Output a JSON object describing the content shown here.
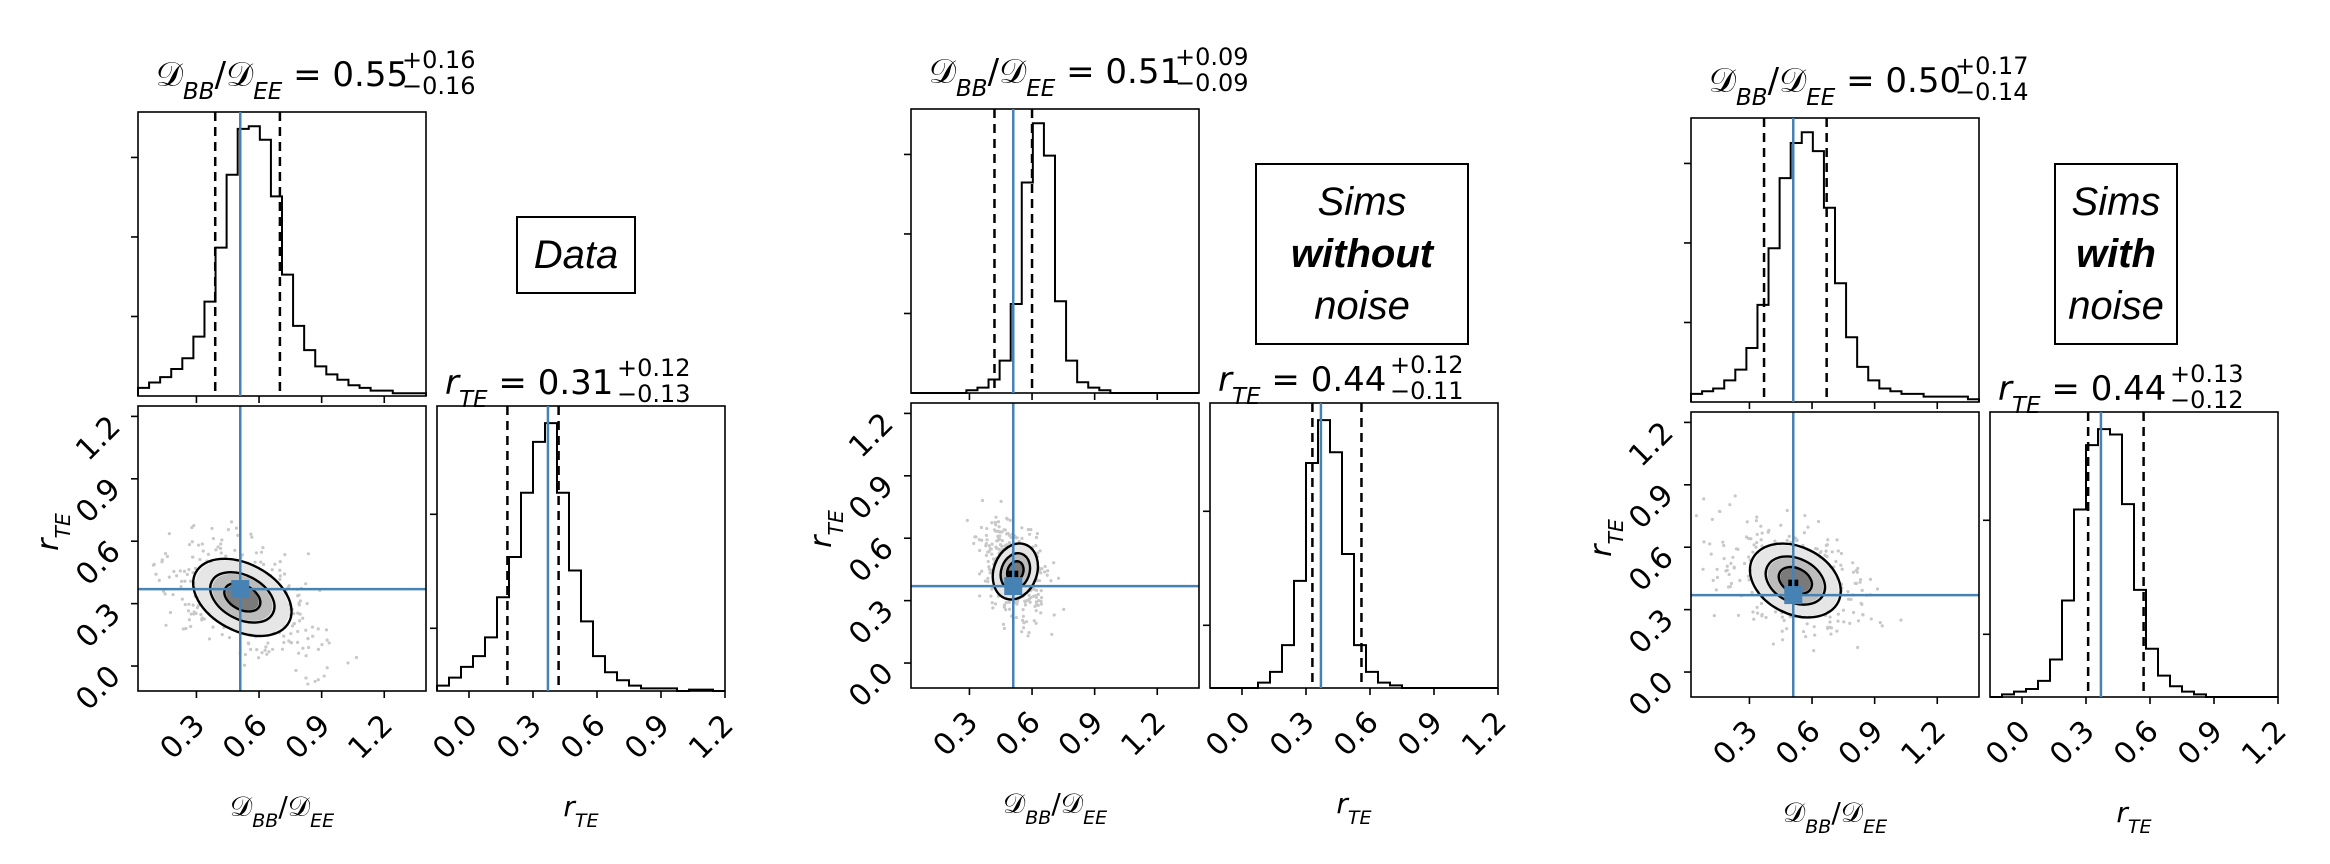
{
  "chart_data": [
    {
      "type": "corner",
      "label_lines": [
        "Data"
      ],
      "label_bold_line": -1,
      "param1": {
        "title_value": "0.55",
        "err_plus": "+0.16",
        "err_minus": "−0.16",
        "truth": 0.51,
        "quantile_lo": 0.39,
        "quantile_hi": 0.7,
        "xlim": [
          0.02,
          1.4
        ],
        "ticks": [
          "0.3",
          "0.6",
          "0.9",
          "1.2"
        ],
        "tick_values": [
          0.3,
          0.6,
          0.9,
          1.2
        ],
        "hist": [
          0.03,
          0.05,
          0.07,
          0.1,
          0.14,
          0.22,
          0.35,
          0.55,
          0.82,
          0.99,
          1.0,
          0.95,
          0.74,
          0.45,
          0.26,
          0.17,
          0.11,
          0.08,
          0.06,
          0.04,
          0.03,
          0.02,
          0.02,
          0.01,
          0.01,
          0.01
        ]
      },
      "param2": {
        "title_value": "0.31",
        "err_plus": "+0.12",
        "err_minus": "−0.13",
        "truth": 0.37,
        "quantile_lo": 0.18,
        "quantile_hi": 0.42,
        "xlim": [
          -0.15,
          1.2
        ],
        "ticks": [
          "0.0",
          "0.3",
          "0.6",
          "0.9",
          "1.2"
        ],
        "tick_values": [
          0.0,
          0.3,
          0.6,
          0.9,
          1.2
        ],
        "hist": [
          0.02,
          0.05,
          0.09,
          0.13,
          0.2,
          0.35,
          0.5,
          0.74,
          0.93,
          1.0,
          0.74,
          0.45,
          0.26,
          0.13,
          0.07,
          0.04,
          0.02,
          0.01,
          0.01,
          0.01,
          0.0,
          0.005,
          0.005,
          0.0
        ]
      },
      "ylim": [
        -0.12,
        1.25
      ],
      "yticks": [
        "0.0",
        "0.3",
        "0.6",
        "0.9",
        "1.2"
      ],
      "ytick_values": [
        0.0,
        0.3,
        0.6,
        0.9,
        1.2
      ],
      "contour_center": [
        0.52,
        0.33
      ],
      "contour_spread": [
        0.22,
        0.14,
        -0.015
      ],
      "peak_point": [
        0.51,
        0.31
      ]
    },
    {
      "type": "corner",
      "label_lines": [
        "Sims",
        "without",
        "noise"
      ],
      "label_bold_line": 1,
      "param1": {
        "title_value": "0.51",
        "err_plus": "+0.09",
        "err_minus": "−0.09",
        "truth": 0.51,
        "quantile_lo": 0.42,
        "quantile_hi": 0.6,
        "xlim": [
          0.02,
          1.4
        ],
        "ticks": [
          "0.3",
          "0.6",
          "0.9",
          "1.2"
        ],
        "tick_values": [
          0.3,
          0.6,
          0.9,
          1.2
        ],
        "hist": [
          0.0,
          0.0,
          0.0,
          0.0,
          0.0,
          0.01,
          0.02,
          0.05,
          0.12,
          0.33,
          0.78,
          1.0,
          0.88,
          0.34,
          0.12,
          0.04,
          0.02,
          0.01,
          0.0,
          0.0,
          0.0,
          0.0,
          0.0,
          0.0,
          0.0,
          0.0
        ]
      },
      "param2": {
        "title_value": "0.44",
        "err_plus": "+0.12",
        "err_minus": "−0.11",
        "truth": 0.37,
        "quantile_lo": 0.33,
        "quantile_hi": 0.56,
        "xlim": [
          -0.15,
          1.2
        ],
        "ticks": [
          "0.0",
          "0.3",
          "0.6",
          "0.9",
          "1.2"
        ],
        "tick_values": [
          0.0,
          0.3,
          0.6,
          0.9,
          1.2
        ],
        "hist": [
          0.0,
          0.0,
          0.0,
          0.0,
          0.02,
          0.06,
          0.16,
          0.4,
          0.84,
          1.0,
          0.88,
          0.5,
          0.16,
          0.06,
          0.02,
          0.01,
          0.0,
          0.0,
          0.0,
          0.0,
          0.0,
          0.0,
          0.0,
          0.0
        ]
      },
      "ylim": [
        -0.12,
        1.25
      ],
      "yticks": [
        "0.0",
        "0.3",
        "0.6",
        "0.9",
        "1.2"
      ],
      "ytick_values": [
        0.0,
        0.3,
        0.6,
        0.9,
        1.2
      ],
      "contour_center": [
        0.52,
        0.44
      ],
      "contour_spread": [
        0.09,
        0.12,
        -0.009
      ],
      "peak_point": [
        0.51,
        0.37
      ]
    },
    {
      "type": "corner",
      "label_lines": [
        "Sims",
        "with",
        "noise"
      ],
      "label_bold_line": 1,
      "param1": {
        "title_value": "0.50",
        "err_plus": "+0.17",
        "err_minus": "−0.14",
        "truth": 0.51,
        "quantile_lo": 0.37,
        "quantile_hi": 0.67,
        "xlim": [
          0.02,
          1.4
        ],
        "ticks": [
          "0.3",
          "0.6",
          "0.9",
          "1.2"
        ],
        "tick_values": [
          0.3,
          0.6,
          0.9,
          1.2
        ],
        "hist": [
          0.03,
          0.04,
          0.05,
          0.08,
          0.12,
          0.2,
          0.36,
          0.57,
          0.83,
          0.96,
          1.0,
          0.93,
          0.72,
          0.44,
          0.24,
          0.13,
          0.08,
          0.05,
          0.04,
          0.03,
          0.03,
          0.02,
          0.02,
          0.02,
          0.02,
          0.01
        ]
      },
      "param2": {
        "title_value": "0.44",
        "err_plus": "+0.13",
        "err_minus": "−0.12",
        "truth": 0.37,
        "quantile_lo": 0.31,
        "quantile_hi": 0.57,
        "xlim": [
          -0.15,
          1.2
        ],
        "ticks": [
          "0.0",
          "0.3",
          "0.6",
          "0.9",
          "1.2"
        ],
        "tick_values": [
          0.0,
          0.3,
          0.6,
          0.9,
          1.2
        ],
        "hist": [
          0.0,
          0.01,
          0.02,
          0.03,
          0.06,
          0.14,
          0.36,
          0.7,
          0.94,
          1.0,
          0.98,
          0.72,
          0.4,
          0.18,
          0.08,
          0.04,
          0.02,
          0.01,
          0.0,
          0.0,
          0.0,
          0.0,
          0.0,
          0.0
        ]
      },
      "ylim": [
        -0.12,
        1.25
      ],
      "yticks": [
        "0.0",
        "0.3",
        "0.6",
        "0.9",
        "1.2"
      ],
      "ytick_values": [
        0.0,
        0.3,
        0.6,
        0.9,
        1.2
      ],
      "contour_center": [
        0.52,
        0.44
      ],
      "contour_spread": [
        0.2,
        0.14,
        -0.012
      ],
      "peak_point": [
        0.51,
        0.37
      ]
    }
  ]
}
